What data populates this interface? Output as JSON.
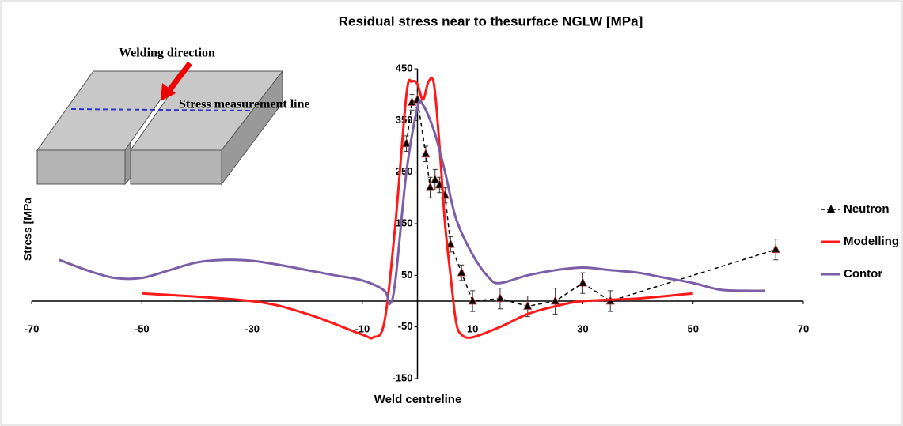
{
  "chart_data": {
    "type": "line",
    "title": "Residual stress near to thesurface NGLW [MPa]",
    "y_label": "Stress [MPa",
    "x_label": "Weld centreline",
    "annotations": [
      "Welding direction",
      "Stress measurement line"
    ],
    "xlim": [
      -70,
      70
    ],
    "xticks": [
      -70,
      -50,
      -30,
      -10,
      10,
      30,
      50,
      70
    ],
    "ylim": [
      -150,
      450
    ],
    "yticks": [
      -150,
      -50,
      50,
      150,
      250,
      350,
      450
    ],
    "legend": "right",
    "series": [
      {
        "name": "Neutron",
        "color": "#000000",
        "linestyle": "dashed",
        "marker": "triangle",
        "smooth": false,
        "x": [
          -2,
          -1,
          0,
          1.5,
          2.3,
          3.2,
          4,
          5,
          6,
          8,
          10,
          15,
          20,
          25,
          30,
          35,
          65
        ],
        "values": [
          305,
          385,
          390,
          285,
          220,
          235,
          225,
          205,
          110,
          55,
          0,
          5,
          -10,
          0,
          35,
          0,
          100
        ],
        "errors": [
          15,
          15,
          15,
          15,
          20,
          20,
          15,
          15,
          15,
          15,
          20,
          20,
          20,
          25,
          20,
          20,
          20
        ]
      },
      {
        "name": "Modelling",
        "color": "#ff1a1a",
        "linestyle": "solid",
        "smooth": true,
        "x": [
          -50,
          -30,
          -20,
          -10,
          -8,
          -6,
          -4,
          -2,
          -1,
          0,
          1,
          2,
          3,
          4,
          5,
          6,
          7,
          8,
          10,
          15,
          20,
          25,
          30,
          40,
          50
        ],
        "values": [
          15,
          0,
          -25,
          -65,
          -70,
          -40,
          150,
          400,
          425,
          420,
          390,
          425,
          420,
          300,
          150,
          50,
          -40,
          -65,
          -70,
          -50,
          -25,
          -10,
          0,
          5,
          15
        ]
      },
      {
        "name": "Contor",
        "color": "#7b5ea7",
        "linestyle": "solid",
        "smooth": true,
        "x": [
          -65,
          -60,
          -55,
          -50,
          -45,
          -40,
          -35,
          -30,
          -25,
          -20,
          -15,
          -10,
          -6,
          -5,
          -4,
          -2,
          0,
          1,
          3,
          5,
          7,
          10,
          13,
          15,
          20,
          25,
          30,
          35,
          40,
          45,
          50,
          55,
          60,
          63
        ],
        "values": [
          80,
          60,
          45,
          45,
          60,
          75,
          80,
          78,
          70,
          60,
          50,
          40,
          20,
          -5,
          40,
          250,
          375,
          380,
          330,
          250,
          160,
          90,
          45,
          35,
          50,
          60,
          65,
          60,
          55,
          45,
          35,
          22,
          20,
          20
        ]
      }
    ]
  }
}
